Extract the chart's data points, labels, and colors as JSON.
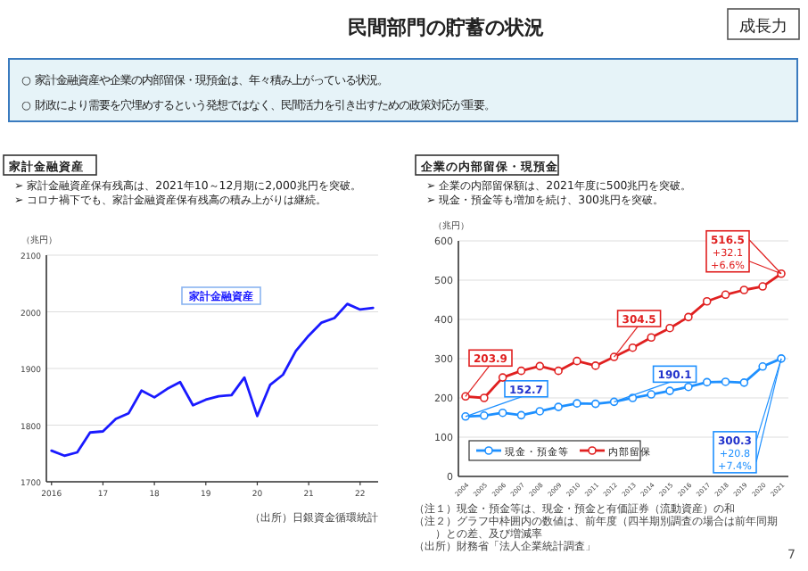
{
  "chart_data": [
    {
      "type": "other",
      "title": "民間部門の貯蓄の状況",
      "annotations": [
        "成長力",
        "○ 家計金融資産や企業の内部留保・現預金は、年々積み上がっている状況。",
        "○ 財政により需要を穴埋めするという発想ではなく、民間活力を引き出すための政策対応が重要。",
        "7"
      ]
    },
    {
      "type": "line",
      "title": "家計金融資産",
      "ylabel": "（兆円）",
      "annotations": [
        "➢ 家計金融資産保有残高は、2021年10～12月期に2,000兆円を突破。",
        "➢ コロナ禍下でも、家計金融資産保有残高の積み上がりは継続。",
        "（出所）日銀資金循環統計"
      ],
      "x": [
        2016,
        2016.25,
        2016.5,
        2016.75,
        2017,
        2017.25,
        2017.5,
        2017.75,
        2018,
        2018.25,
        2018.5,
        2018.75,
        2019,
        2019.25,
        2019.5,
        2019.75,
        2020,
        2020.25,
        2020.5,
        2020.75,
        2021,
        2021.25,
        2021.5,
        2021.75,
        2022,
        2022.25
      ],
      "series": [
        {
          "name": "家計金融資産",
          "color": "#1a1aff",
          "values": [
            1755,
            1746,
            1752,
            1787,
            1789,
            1811,
            1821,
            1861,
            1849,
            1864,
            1876,
            1835,
            1845,
            1851,
            1853,
            1884,
            1816,
            1871,
            1889,
            1931,
            1958,
            1981,
            1989,
            2014,
            2004,
            2007
          ]
        }
      ],
      "xlim": [
        2015.9,
        2022.35
      ],
      "xticks": [
        2016,
        {
          "value": 2017,
          "label": "17"
        },
        {
          "value": 2018,
          "label": "18"
        },
        {
          "value": 2019,
          "label": "19"
        },
        {
          "value": 2020,
          "label": "20"
        },
        {
          "value": 2021,
          "label": "21"
        },
        {
          "value": 2022,
          "label": "22"
        }
      ],
      "ylim": [
        1700,
        2100
      ],
      "yticks": [
        1700,
        1800,
        1900,
        2000,
        2100
      ],
      "grid": "y",
      "legend": "top right",
      "marker": "none"
    },
    {
      "type": "line",
      "title": "企業の内部留保・現預金",
      "ylabel": "（兆円）",
      "annotations": [
        "➢ 企業の内部留保額は、2021年度に500兆円を突破。",
        "➢ 現金・預金等も増加を続け、300兆円を突破。",
        {
          "text": "+32.1",
          "x": "2021",
          "y": 516.5
        },
        {
          "text": "+6.6%",
          "x": "2021",
          "y": 516.5
        },
        {
          "text": "+20.8",
          "x": "2021",
          "y": 300.3
        },
        {
          "text": "+7.4%",
          "x": "2021",
          "y": 300.3
        },
        "（注１）現金・預金等は、現金・預金と有価証券（流動資産）の和",
        "（注２）グラフ中枠囲内の数値は、前年度（四半期別調査の場合は前年同期）との差、及び増減率",
        "（出所）財務省「法人企業統計調査」"
      ],
      "categories": [
        "2004",
        "2005",
        "2006",
        "2007",
        "2008",
        "2009",
        "2010",
        "2011",
        "2012",
        "2013",
        "2014",
        "2015",
        "2016",
        "2017",
        "2018",
        "2019",
        "2020",
        "2021"
      ],
      "series": [
        {
          "name": "現金・預金等",
          "color": "#1e90ff",
          "values": [
            152.7,
            155,
            162,
            156,
            166,
            177,
            186,
            185,
            190.1,
            200,
            209,
            218,
            228,
            240,
            241,
            239,
            280,
            300.3
          ],
          "value_labels": [
            "152.7",
            null,
            null,
            null,
            null,
            null,
            null,
            null,
            "190.1",
            null,
            null,
            null,
            null,
            null,
            null,
            null,
            null,
            "300.3"
          ]
        },
        {
          "name": "内部留保",
          "color": "#e02020",
          "values": [
            203.9,
            200,
            252,
            269,
            281,
            269,
            294,
            282,
            304.5,
            328,
            354,
            378,
            406,
            446,
            463,
            475,
            484,
            516.5
          ],
          "value_labels": [
            "203.9",
            null,
            null,
            null,
            null,
            null,
            null,
            null,
            "304.5",
            null,
            null,
            null,
            null,
            null,
            null,
            null,
            null,
            "516.5"
          ]
        }
      ],
      "ylim": [
        0,
        600
      ],
      "yticks": [
        0,
        100,
        200,
        300,
        400,
        500,
        600
      ],
      "grid": "y",
      "legend": "bottom left",
      "marker": "circle"
    }
  ]
}
